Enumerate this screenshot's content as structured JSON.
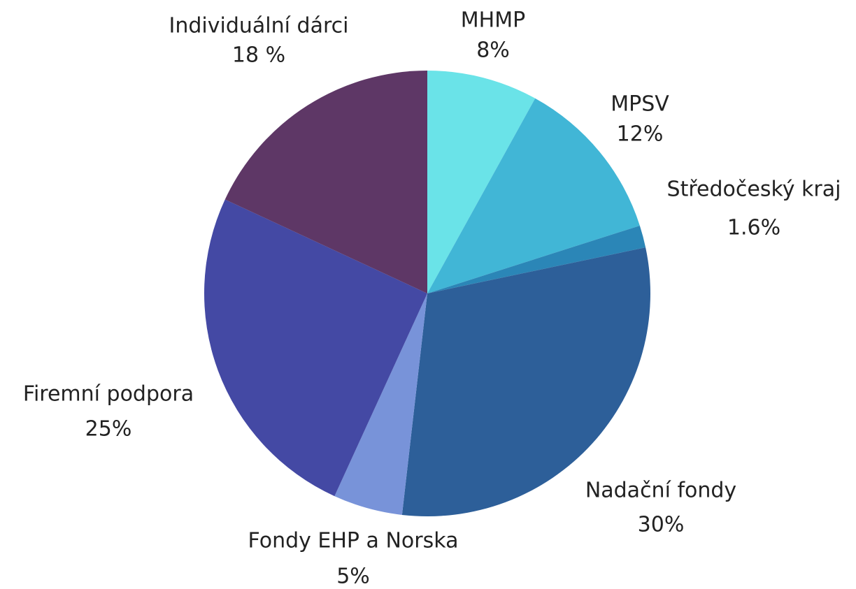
{
  "chart_data": {
    "type": "pie",
    "categories": [
      "MHMP",
      "MPSV",
      "Středočeský kraj",
      "Nadační fondy",
      "Fondy EHP a Norska",
      "Firemní podpora",
      "Individuální dárci"
    ],
    "values": [
      8,
      12,
      1.6,
      30,
      5,
      25,
      18
    ],
    "value_labels": [
      "8%",
      "12%",
      "1.6%",
      "30%",
      "5%",
      "25%",
      "18 %"
    ],
    "colors": [
      "#6ae3e8",
      "#41b6d6",
      "#2b86b7",
      "#2d5f99",
      "#7893d9",
      "#4449a4",
      "#5e3766"
    ]
  }
}
